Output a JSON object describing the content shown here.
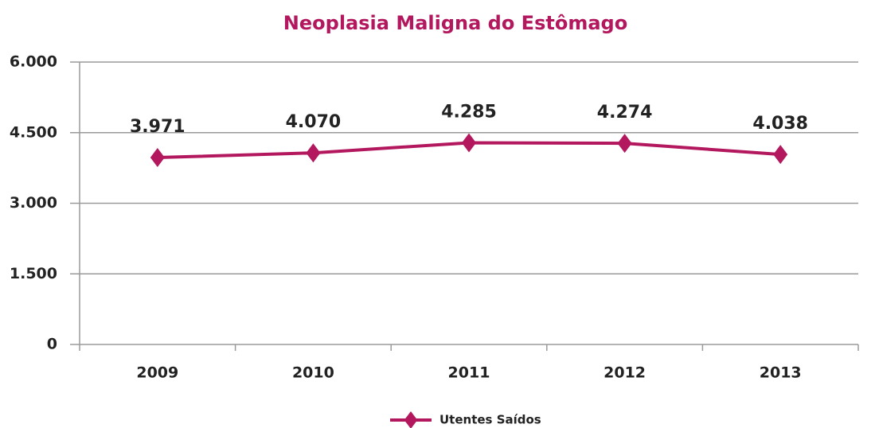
{
  "chart_data": {
    "type": "line",
    "title": "Neoplasia Maligna do Estômago",
    "categories": [
      "2009",
      "2010",
      "2011",
      "2012",
      "2013"
    ],
    "series": [
      {
        "name": "Utentes Saídos",
        "color": "#b3185f",
        "values": [
          3971,
          4070,
          4285,
          4274,
          4038
        ],
        "value_labels": [
          "3.971",
          "4.070",
          "4.285",
          "4.274",
          "4.038"
        ]
      }
    ],
    "ylim": [
      0,
      6000
    ],
    "yticks": [
      0,
      {
        "value": 1500,
        "label": "1.500"
      },
      {
        "value": 3000,
        "label": "3.000"
      },
      {
        "value": 4500,
        "label": "4.500"
      },
      {
        "value": 6000,
        "label": "6.000"
      }
    ],
    "grid": true,
    "legend": "bottom"
  }
}
